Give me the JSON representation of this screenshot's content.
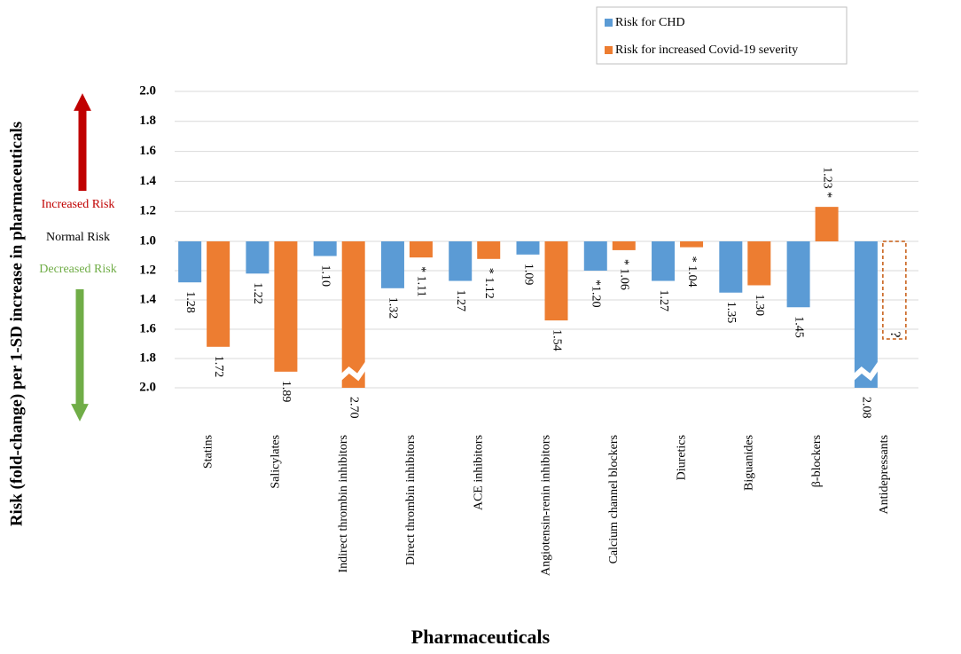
{
  "chart_data": {
    "type": "diverging-bar",
    "y_axis_label": "Risk (fold-change) per 1-SD increase in pharmaceuticals",
    "x_axis_label": "Pharmaceuticals",
    "annotations": {
      "increased": "Increased Risk",
      "normal": "Normal Risk",
      "decreased": "Decreased Risk"
    },
    "categories": [
      "Statins",
      "Salicylates",
      "Indirect thrombin inhibitors",
      "Direct thrombin inhibitors",
      "ACE inhibitors",
      "Angiotensin-renin inhibitors",
      "Calcium channel blockers",
      "Diuretics",
      "Biguanides",
      "β-blockers",
      "Antidepressants"
    ],
    "series": [
      {
        "name": "Risk for CHD",
        "color": "#5b9bd5",
        "values": [
          1.28,
          1.22,
          1.1,
          1.32,
          1.27,
          1.09,
          1.2,
          1.27,
          1.35,
          1.45,
          2.08
        ],
        "value_labels": [
          "1.28",
          "1.22",
          "1.10",
          "1.32",
          "1.27",
          "1.09",
          "*1.20",
          "1.27",
          "1.35",
          "1.45",
          "2.08"
        ],
        "directions": [
          "down",
          "down",
          "down",
          "down",
          "down",
          "down",
          "down",
          "down",
          "down",
          "down",
          "down"
        ]
      },
      {
        "name": "Risk for increased Covid-19 severity",
        "color": "#ed7d31",
        "values": [
          1.72,
          1.89,
          2.7,
          1.11,
          1.12,
          1.54,
          1.06,
          1.04,
          1.3,
          1.23,
          null
        ],
        "value_labels": [
          "1.72",
          "1.89",
          "2.70",
          "* 1.11",
          "* 1.12",
          "1.54",
          "* 1.06",
          "* 1.04",
          "1.30",
          "1.23 *",
          "?"
        ],
        "directions": [
          "down",
          "down",
          "down",
          "down",
          "down",
          "down",
          "down",
          "down",
          "down",
          "up",
          "down"
        ]
      }
    ],
    "ylim": [
      1.0,
      2.0
    ],
    "yticks": [
      {
        "value": 2.0,
        "label": "2.0",
        "side": "up"
      },
      {
        "value": 1.8,
        "label": "1.8",
        "side": "up"
      },
      {
        "value": 1.6,
        "label": "1.6",
        "side": "up"
      },
      {
        "value": 1.4,
        "label": "1.4",
        "side": "up"
      },
      {
        "value": 1.2,
        "label": "1.2",
        "side": "up"
      },
      {
        "value": 1.0,
        "label": "1.0",
        "side": "up"
      },
      {
        "value": 1.2,
        "label": "1.2",
        "side": "down"
      },
      {
        "value": 1.4,
        "label": "1.4",
        "side": "down"
      },
      {
        "value": 1.6,
        "label": "1.6",
        "side": "down"
      },
      {
        "value": 1.8,
        "label": "1.8",
        "side": "down"
      },
      {
        "value": 2.0,
        "label": "2.0",
        "side": "down"
      }
    ],
    "grid": true
  }
}
